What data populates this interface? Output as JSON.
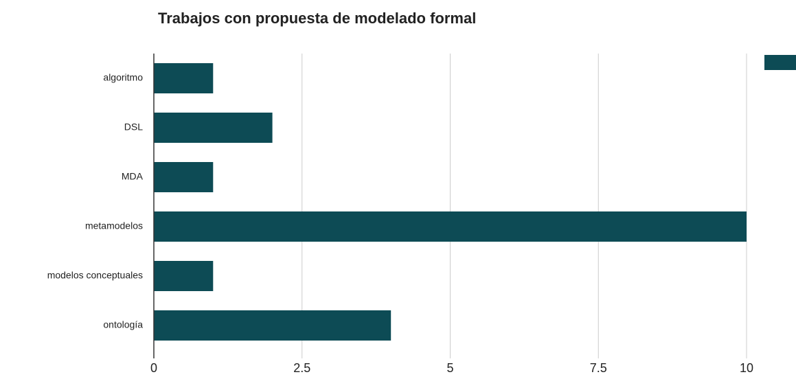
{
  "chart_data": {
    "type": "bar",
    "orientation": "horizontal",
    "title": "Trabajos con propuesta de modelado formal",
    "categories": [
      "algoritmo",
      "DSL",
      "MDA",
      "metamodelos",
      "modelos conceptuales",
      "ontología"
    ],
    "values": [
      1,
      2,
      1,
      10,
      1,
      4
    ],
    "color": "#0d4b55",
    "xlim": [
      0,
      10
    ],
    "xticks": [
      0,
      2.5,
      5,
      7.5,
      10
    ],
    "grid": true
  }
}
